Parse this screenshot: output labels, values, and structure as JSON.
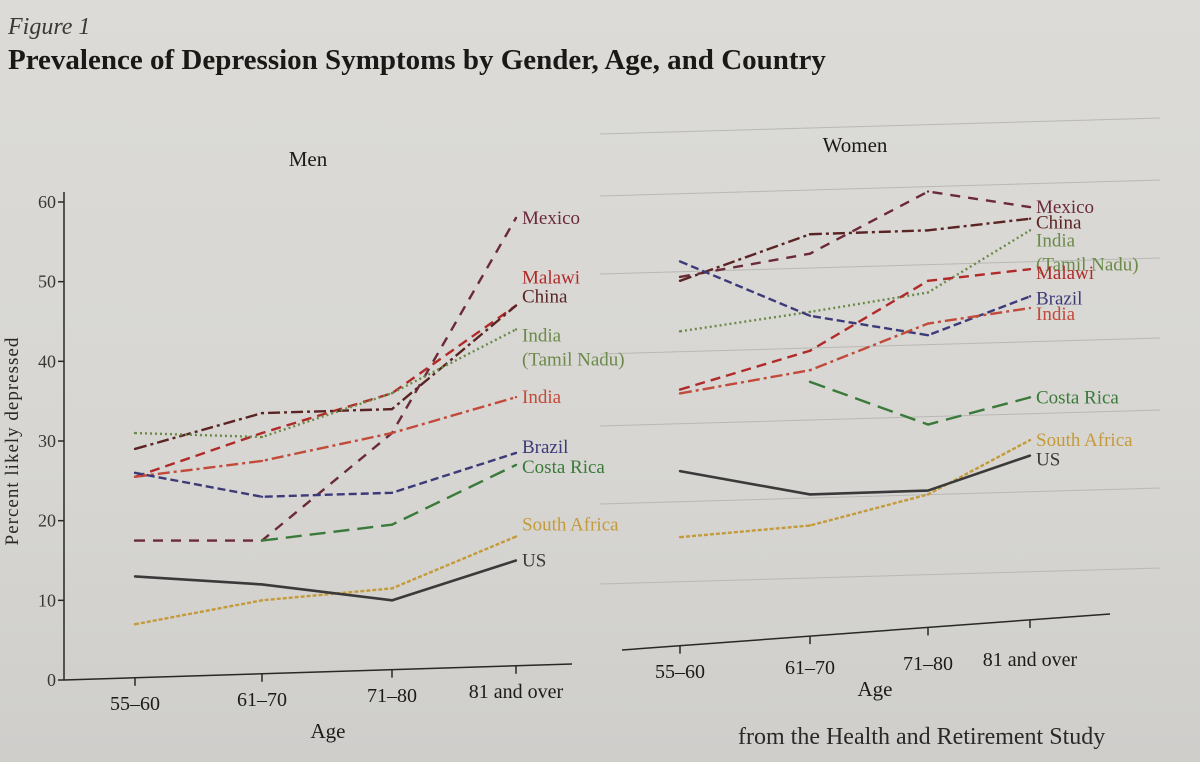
{
  "figure": {
    "label": "Figure 1",
    "title": "Prevalence of Depression Symptoms by Gender, Age, and Country",
    "footer_fragment": "from the Health and Retirement Study"
  },
  "colors": {
    "Mexico": "#6b2a3a",
    "Malawi": "#b12a2a",
    "China": "#5a2424",
    "India (Tamil Nadu)": "#6b8a4a",
    "India": "#c24a3a",
    "Brazil": "#3d3a7a",
    "Costa Rica": "#3a7a3a",
    "South Africa": "#c49a3a",
    "US": "#3a3a3a"
  },
  "chart_data": [
    {
      "type": "line",
      "panel": "Men",
      "categories": [
        "55–60",
        "61–70",
        "71–80",
        "81 and over"
      ],
      "xlabel": "Age",
      "ylabel": "Percent likely depressed",
      "ylim": [
        0,
        60
      ],
      "yticks": [
        "0",
        "10",
        "20",
        "30",
        "40",
        "50",
        "60"
      ],
      "series": [
        {
          "name": "Mexico",
          "label": "Mexico",
          "dash": "10,8",
          "values": [
            17.5,
            17.5,
            31,
            58
          ]
        },
        {
          "name": "Malawi",
          "label": "Malawi",
          "dash": "10,6",
          "values": [
            25.5,
            31,
            36,
            47
          ]
        },
        {
          "name": "China",
          "label": "China",
          "dash": "12,4,3,4",
          "values": [
            29,
            33.5,
            34,
            47
          ]
        },
        {
          "name": "India (Tamil Nadu)",
          "label": "India",
          "label2": "(Tamil Nadu)",
          "dash": "2,3",
          "values": [
            31,
            30.5,
            36,
            44
          ]
        },
        {
          "name": "India",
          "label": "India",
          "dash": "12,4,3,4",
          "values": [
            25.5,
            27.5,
            31,
            35.5
          ]
        },
        {
          "name": "Brazil",
          "label": "Brazil",
          "dash": "8,4",
          "values": [
            26,
            23,
            23.5,
            28.5
          ]
        },
        {
          "name": "Costa Rica",
          "label": "Costa Rica",
          "dash": "16,8",
          "values": [
            null,
            17.5,
            19.5,
            27
          ]
        },
        {
          "name": "South Africa",
          "label": "South Africa",
          "dash": "4,2",
          "values": [
            7,
            10,
            11.5,
            18
          ]
        },
        {
          "name": "US",
          "label": "US",
          "dash": "",
          "values": [
            13,
            12,
            10,
            15
          ]
        }
      ]
    },
    {
      "type": "line",
      "panel": "Women",
      "categories": [
        "55–60",
        "61–70",
        "71–80",
        "81 and over"
      ],
      "xlabel": "Age",
      "ylim": [
        0,
        60
      ],
      "series": [
        {
          "name": "Mexico",
          "label": "Mexico",
          "dash": "10,8",
          "values": [
            47,
            50,
            58,
            56
          ]
        },
        {
          "name": "China",
          "label": "China",
          "dash": "12,4,3,4",
          "values": [
            46.5,
            52.5,
            53,
            54.5
          ]
        },
        {
          "name": "India (Tamil Nadu)",
          "label": "India",
          "label2": "(Tamil Nadu)",
          "dash": "2,3",
          "values": [
            40,
            42.5,
            45,
            53
          ]
        },
        {
          "name": "Malawi",
          "label": "Malawi",
          "dash": "10,6",
          "values": [
            32.5,
            37.5,
            46.5,
            48
          ]
        },
        {
          "name": "Brazil",
          "label": "Brazil",
          "dash": "8,4",
          "values": [
            49,
            42,
            39.5,
            44.5
          ]
        },
        {
          "name": "India",
          "label": "India",
          "dash": "12,4,3,4",
          "values": [
            32,
            35,
            41,
            43
          ]
        },
        {
          "name": "Costa Rica",
          "label": "Costa Rica",
          "dash": "16,8",
          "values": [
            null,
            33.5,
            28,
            31.5
          ]
        },
        {
          "name": "South Africa",
          "label": "South Africa",
          "dash": "4,2",
          "values": [
            13.5,
            15,
            19,
            26
          ]
        },
        {
          "name": "US",
          "label": "US",
          "dash": "",
          "values": [
            22,
            19,
            19.5,
            24
          ]
        }
      ]
    }
  ]
}
